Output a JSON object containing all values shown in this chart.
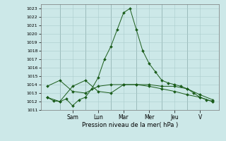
{
  "title": "",
  "xlabel": "Pression niveau de la mer( hPa )",
  "ylabel": "",
  "background_color": "#cce8e8",
  "grid_color": "#aacccc",
  "line_color": "#1a5c1a",
  "ylim": [
    1011,
    1023.5
  ],
  "yticks": [
    1011,
    1012,
    1013,
    1014,
    1015,
    1016,
    1017,
    1018,
    1019,
    1020,
    1021,
    1022,
    1023
  ],
  "day_labels": [
    "Sam",
    "Lun",
    "Mar",
    "Mer",
    "Jeu",
    "V"
  ],
  "day_x": [
    2.0,
    4.0,
    6.0,
    8.0,
    10.0,
    12.0
  ],
  "xlim": [
    -0.5,
    13.5
  ],
  "series": [
    {
      "x": [
        0,
        0.5,
        1,
        1.5,
        2,
        2.5,
        3,
        3.5,
        4,
        4.5,
        5,
        5.5,
        6,
        6.5,
        7,
        7.5,
        8,
        8.5,
        9,
        9.5,
        10,
        10.5,
        11,
        11.5,
        12,
        12.5,
        13
      ],
      "y": [
        1012.5,
        1012.1,
        1012.0,
        1012.3,
        1011.5,
        1012.2,
        1012.5,
        1013.5,
        1014.8,
        1017.0,
        1018.5,
        1020.5,
        1022.5,
        1023.0,
        1020.5,
        1018.0,
        1016.5,
        1015.5,
        1014.5,
        1014.2,
        1014.0,
        1013.8,
        1013.5,
        1013.0,
        1012.5,
        1012.2,
        1012.0
      ],
      "marker": "D",
      "ms": 2.0
    },
    {
      "x": [
        0,
        1,
        2,
        3,
        4,
        5,
        6,
        7,
        8,
        9,
        10,
        11,
        12,
        13
      ],
      "y": [
        1013.8,
        1014.5,
        1013.2,
        1013.0,
        1013.8,
        1014.0,
        1014.0,
        1014.0,
        1014.0,
        1013.8,
        1013.8,
        1013.5,
        1012.8,
        1012.2
      ],
      "marker": "D",
      "ms": 2.0
    },
    {
      "x": [
        0,
        1,
        2,
        3,
        4,
        5,
        6,
        7,
        8,
        9,
        10,
        11,
        12,
        13
      ],
      "y": [
        1012.5,
        1012.0,
        1013.8,
        1014.5,
        1013.2,
        1013.0,
        1014.0,
        1014.0,
        1013.8,
        1013.5,
        1013.2,
        1012.8,
        1012.5,
        1012.0
      ],
      "marker": "D",
      "ms": 2.0
    }
  ]
}
